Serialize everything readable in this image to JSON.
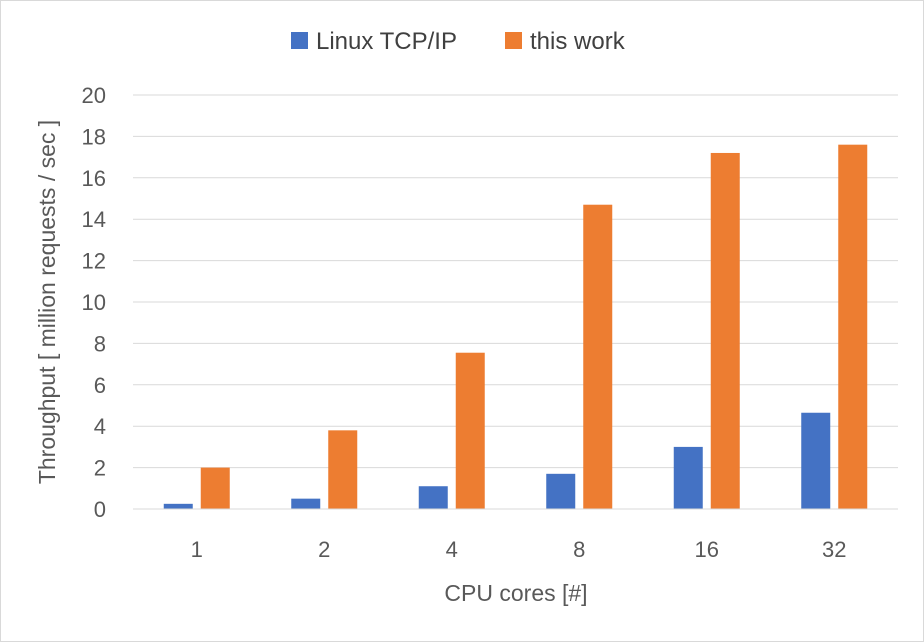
{
  "chart_data": {
    "type": "bar",
    "title": "",
    "xlabel": "CPU cores [#]",
    "ylabel": "Throughput [ million requests / sec ]",
    "categories": [
      "1",
      "2",
      "4",
      "8",
      "16",
      "32"
    ],
    "series": [
      {
        "name": "Linux TCP/IP",
        "color": "#4472c4",
        "values": [
          0.25,
          0.5,
          1.1,
          1.7,
          3.0,
          4.65
        ]
      },
      {
        "name": "this work",
        "color": "#ed7d31",
        "values": [
          2.0,
          3.8,
          7.55,
          14.7,
          17.2,
          17.6
        ]
      }
    ],
    "ylim": [
      0,
      20
    ],
    "yticks": [
      "0",
      "2",
      "4",
      "6",
      "8",
      "10",
      "12",
      "14",
      "16",
      "18",
      "20"
    ],
    "grid": true,
    "legend_position": "top"
  }
}
